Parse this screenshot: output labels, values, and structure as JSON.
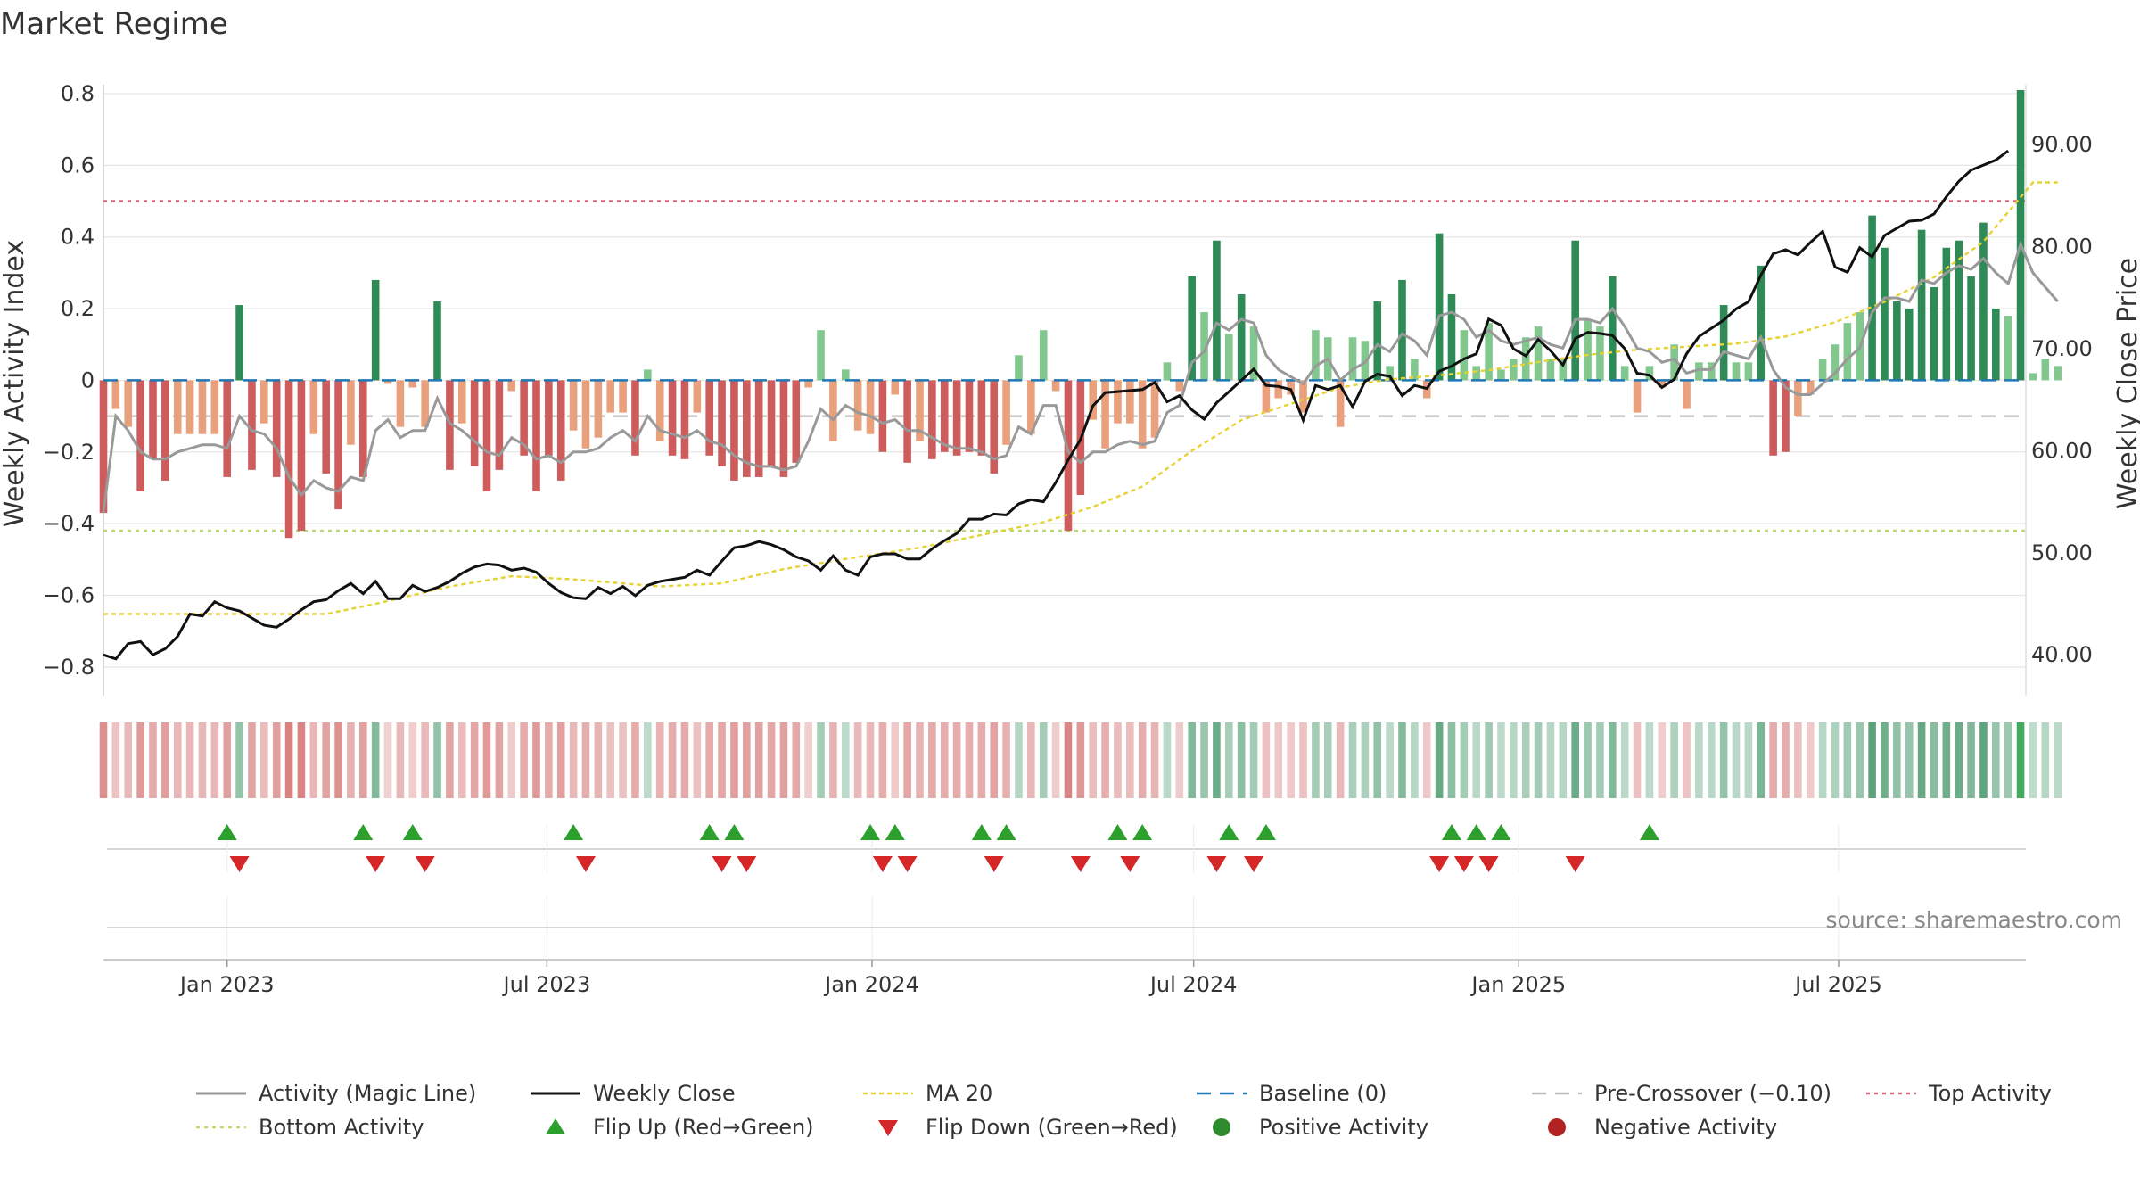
{
  "chart_data": {
    "type": "bar",
    "title": "Market Regime",
    "ylabel": "Weekly Activity Index",
    "y2label": "Weekly Close Price",
    "ylim": [
      -0.88,
      0.8
    ],
    "y2lim": [
      36.0,
      95.0
    ],
    "y_ticks": [
      0.8,
      0.6,
      0.4,
      0.2,
      0,
      -0.2,
      -0.4,
      -0.6,
      -0.8
    ],
    "y_tick_labels": [
      "0.8",
      "0.6",
      "0.4",
      "0.2",
      "0",
      "−0.2",
      "−0.4",
      "−0.6",
      "−0.8"
    ],
    "y2_ticks": [
      90,
      80,
      70,
      60,
      50,
      40
    ],
    "y2_tick_labels": [
      "90.00",
      "80.00",
      "70.00",
      "60.00",
      "50.00",
      "40.00"
    ],
    "x_ticks": [
      {
        "date": "2023-01-01",
        "label": "Jan 2023"
      },
      {
        "date": "2023-07-01",
        "label": "Jul 2023"
      },
      {
        "date": "2024-01-01",
        "label": "Jan 2024"
      },
      {
        "date": "2024-07-01",
        "label": "Jul 2024"
      },
      {
        "date": "2025-01-01",
        "label": "Jan 2025"
      },
      {
        "date": "2025-07-01",
        "label": "Jul 2025"
      }
    ],
    "x_range": [
      "2022-10-23",
      "2025-10-15"
    ],
    "first_week": "2022-10-23",
    "weeks": 157,
    "thresholds": {
      "top": 0.5,
      "bottom": -0.42,
      "pre_crossover": -0.1,
      "baseline": 0
    },
    "colors": {
      "strong_pos": "#2e8b57",
      "weak_pos": "#82c88e",
      "strong_neg": "#cd5c5c",
      "weak_neg": "#e9a07c",
      "magic_line": "#999999",
      "close": "#111111",
      "ma20": "#e6d230",
      "baseline": "#1f77b4",
      "pre_crossover": "#bbbbbb",
      "top": "#d9667a",
      "bottom": "#b8d86b",
      "flip_up": "#2ca02c",
      "flip_down": "#d62728",
      "positive": "#2e8b2e",
      "negative": "#b22222"
    },
    "activity": [
      -0.37,
      -0.08,
      -0.13,
      -0.31,
      -0.22,
      -0.28,
      -0.15,
      -0.15,
      -0.15,
      -0.15,
      -0.27,
      0.21,
      -0.25,
      -0.12,
      -0.27,
      -0.44,
      -0.42,
      -0.15,
      -0.26,
      -0.36,
      -0.18,
      -0.27,
      0.28,
      -0.01,
      -0.13,
      -0.02,
      -0.13,
      0.22,
      -0.25,
      -0.12,
      -0.24,
      -0.31,
      -0.25,
      -0.03,
      -0.21,
      -0.31,
      -0.21,
      -0.28,
      -0.14,
      -0.19,
      -0.16,
      -0.09,
      -0.09,
      -0.21,
      0.03,
      -0.17,
      -0.21,
      -0.22,
      -0.09,
      -0.21,
      -0.24,
      -0.28,
      -0.27,
      -0.27,
      -0.24,
      -0.27,
      -0.23,
      -0.02,
      0.14,
      -0.17,
      0.03,
      -0.14,
      -0.15,
      -0.2,
      -0.04,
      -0.23,
      -0.17,
      -0.22,
      -0.2,
      -0.21,
      -0.2,
      -0.21,
      -0.26,
      -0.18,
      0.07,
      -0.15,
      0.14,
      -0.03,
      -0.42,
      -0.32,
      -0.11,
      -0.19,
      -0.12,
      -0.12,
      -0.19,
      -0.16,
      0.05,
      -0.03,
      0.29,
      0.19,
      0.39,
      0.13,
      0.24,
      0.15,
      -0.09,
      -0.05,
      -0.04,
      -0.09,
      0.14,
      0.12,
      -0.13,
      0.12,
      0.11,
      0.22,
      0.04,
      0.28,
      0.06,
      -0.05,
      0.41,
      0.24,
      0.14,
      0.04,
      0.16,
      0.03,
      0.06,
      0.12,
      0.15,
      0.06,
      0.06,
      0.39,
      0.17,
      0.15,
      0.29,
      0.04,
      -0.09,
      0.04,
      -0.02,
      0.1,
      -0.08,
      0.05,
      0.05,
      0.21,
      0.05,
      0.05,
      0.32,
      -0.21,
      -0.2,
      -0.1,
      -0.04,
      0.06,
      0.1,
      0.16,
      0.19,
      0.46,
      0.37,
      0.22,
      0.2,
      0.42,
      0.26,
      0.37,
      0.39,
      0.29,
      0.44,
      0.2,
      0.18,
      0.81,
      0.02,
      0.06,
      0.04
    ],
    "magic_line": [
      -0.37,
      -0.1,
      -0.14,
      -0.2,
      -0.22,
      -0.22,
      -0.2,
      -0.19,
      -0.18,
      -0.18,
      -0.19,
      -0.1,
      -0.14,
      -0.15,
      -0.19,
      -0.27,
      -0.32,
      -0.28,
      -0.3,
      -0.31,
      -0.27,
      -0.28,
      -0.14,
      -0.11,
      -0.16,
      -0.14,
      -0.14,
      -0.05,
      -0.12,
      -0.14,
      -0.17,
      -0.2,
      -0.21,
      -0.16,
      -0.18,
      -0.22,
      -0.21,
      -0.23,
      -0.2,
      -0.2,
      -0.19,
      -0.16,
      -0.14,
      -0.17,
      -0.1,
      -0.14,
      -0.15,
      -0.16,
      -0.14,
      -0.17,
      -0.18,
      -0.21,
      -0.23,
      -0.24,
      -0.24,
      -0.25,
      -0.24,
      -0.17,
      -0.08,
      -0.11,
      -0.07,
      -0.09,
      -0.1,
      -0.12,
      -0.11,
      -0.14,
      -0.14,
      -0.16,
      -0.18,
      -0.19,
      -0.19,
      -0.2,
      -0.22,
      -0.21,
      -0.13,
      -0.15,
      -0.07,
      -0.07,
      -0.2,
      -0.23,
      -0.2,
      -0.2,
      -0.18,
      -0.17,
      -0.18,
      -0.17,
      -0.09,
      -0.07,
      0.05,
      0.08,
      0.16,
      0.14,
      0.17,
      0.16,
      0.07,
      0.03,
      0.01,
      -0.01,
      0.04,
      0.06,
      0.0,
      0.03,
      0.05,
      0.1,
      0.08,
      0.13,
      0.11,
      0.07,
      0.18,
      0.19,
      0.17,
      0.12,
      0.14,
      0.11,
      0.1,
      0.11,
      0.12,
      0.1,
      0.09,
      0.17,
      0.17,
      0.16,
      0.2,
      0.15,
      0.09,
      0.08,
      0.05,
      0.06,
      0.02,
      0.03,
      0.03,
      0.08,
      0.07,
      0.06,
      0.12,
      0.03,
      -0.02,
      -0.04,
      -0.04,
      -0.01,
      0.02,
      0.06,
      0.09,
      0.19,
      0.23,
      0.23,
      0.22,
      0.28,
      0.27,
      0.3,
      0.32,
      0.31,
      0.34,
      0.3,
      0.27,
      0.38,
      0.3,
      0.26,
      0.22
    ],
    "close": [
      40.0,
      39.6,
      41.1,
      41.3,
      40.0,
      40.6,
      41.8,
      44.0,
      43.8,
      45.2,
      44.6,
      44.3,
      43.6,
      42.9,
      42.7,
      43.5,
      44.4,
      45.2,
      45.4,
      46.3,
      47.0,
      46.0,
      47.2,
      45.5,
      45.5,
      46.8,
      46.2,
      46.6,
      47.2,
      48.0,
      48.6,
      48.9,
      48.8,
      48.3,
      48.5,
      48.1,
      47.0,
      46.1,
      45.6,
      45.5,
      46.6,
      46.0,
      46.7,
      45.8,
      46.8,
      47.2,
      47.4,
      47.6,
      48.3,
      47.8,
      49.2,
      50.5,
      50.7,
      51.1,
      50.8,
      50.3,
      49.6,
      49.2,
      48.3,
      49.7,
      48.3,
      47.8,
      49.6,
      49.9,
      49.9,
      49.4,
      49.4,
      50.4,
      51.2,
      51.9,
      53.3,
      53.3,
      53.8,
      53.7,
      54.8,
      55.2,
      55.0,
      56.9,
      59.1,
      61.1,
      64.4,
      65.7,
      65.8,
      65.9,
      66.0,
      66.7,
      64.8,
      65.4,
      64.0,
      63.1,
      64.7,
      65.8,
      66.9,
      68.0,
      66.4,
      66.3,
      66.0,
      63.0,
      66.4,
      66.0,
      66.4,
      64.3,
      66.8,
      67.5,
      67.3,
      65.4,
      66.4,
      66.1,
      67.8,
      68.3,
      69.0,
      69.5,
      72.9,
      72.3,
      70.0,
      69.3,
      70.9,
      69.8,
      68.4,
      71.0,
      71.6,
      71.5,
      71.3,
      70.0,
      67.6,
      67.4,
      66.2,
      67.0,
      69.5,
      71.2,
      72.0,
      72.8,
      73.9,
      74.6,
      77.2,
      79.3,
      79.7,
      79.2,
      80.4,
      81.5,
      78.0,
      77.5,
      79.9,
      79.0,
      81.1,
      81.8,
      82.5,
      82.6,
      83.2,
      84.9,
      86.4,
      87.5,
      88.0,
      88.5,
      89.4
    ],
    "ma20": [
      44.0,
      44.0,
      44.0,
      44.0,
      44.0,
      44.0,
      44.0,
      44.0,
      44.0,
      44.0,
      44.0,
      44.0,
      44.0,
      44.0,
      44.0,
      44.0,
      44.0,
      44.0,
      44.0,
      44.0,
      44.0,
      44.0,
      44.0,
      44.0,
      44.0,
      44.0,
      44.0,
      44.0,
      44.0,
      44.0,
      44.0,
      44.0,
      44.0,
      44.0,
      44.0,
      44.0,
      44.0,
      44.0,
      44.0,
      44.0,
      44.0,
      44.0,
      44.0,
      44.0,
      44.0,
      44.0,
      44.0,
      44.0,
      44.0,
      44.0,
      44.0,
      44.0,
      44.0,
      44.0,
      44.0,
      44.0,
      44.0,
      44.0,
      44.0,
      44.0,
      44.0,
      44.0,
      44.0,
      44.0,
      44.0,
      44.0,
      44.0,
      44.0,
      44.0,
      44.0,
      44.0,
      44.0,
      44.0,
      44.0,
      44.0,
      44.0,
      44.0,
      44.0,
      44.0,
      44.0,
      44.0,
      44.0,
      44.0,
      44.0,
      44.0,
      44.0,
      44.0,
      44.0,
      44.0,
      44.0,
      44.0,
      44.0,
      44.0,
      44.0,
      44.0,
      44.0,
      44.0,
      44.0,
      44.0,
      44.0,
      44.0,
      44.0,
      44.0,
      44.0,
      44.0,
      44.0,
      44.0,
      44.0,
      44.0,
      44.0,
      44.0,
      44.0,
      44.0,
      44.0,
      44.0,
      44.0,
      44.0,
      44.0,
      44.0,
      44.0,
      44.0,
      44.0,
      44.0,
      44.0,
      44.0,
      44.0,
      44.0,
      44.0,
      44.0,
      44.0,
      44.0,
      44.0,
      44.0,
      44.0,
      44.0,
      44.0,
      44.0,
      44.0,
      44.0,
      44.0,
      44.0,
      44.0,
      44.0,
      44.0,
      44.0,
      44.0,
      44.0,
      44.0,
      44.0,
      44.0,
      44.0,
      44.0,
      44.0,
      44.0,
      44.0,
      44.0,
      44.0
    ],
    "ma20_anchors": [
      [
        0,
        44.0
      ],
      [
        18,
        44.0
      ],
      [
        22,
        45.0
      ],
      [
        28,
        46.7
      ],
      [
        33,
        47.7
      ],
      [
        38,
        47.4
      ],
      [
        45,
        46.7
      ],
      [
        50,
        47.0
      ],
      [
        55,
        48.4
      ],
      [
        60,
        49.4
      ],
      [
        66,
        50.5
      ],
      [
        72,
        52.0
      ],
      [
        76,
        53.0
      ],
      [
        80,
        54.5
      ],
      [
        84,
        56.5
      ],
      [
        88,
        60.0
      ],
      [
        92,
        63.0
      ],
      [
        96,
        64.6
      ],
      [
        100,
        66.2
      ],
      [
        104,
        67.0
      ],
      [
        108,
        67.4
      ],
      [
        112,
        67.9
      ],
      [
        116,
        68.7
      ],
      [
        120,
        69.4
      ],
      [
        124,
        69.9
      ],
      [
        128,
        70.2
      ],
      [
        132,
        70.5
      ],
      [
        136,
        71.2
      ],
      [
        140,
        72.6
      ],
      [
        144,
        74.6
      ],
      [
        148,
        77.0
      ],
      [
        152,
        80.5
      ],
      [
        156,
        86.3
      ]
    ],
    "flip_up_weeks": [
      10,
      21,
      25,
      38,
      49,
      51,
      62,
      64,
      71,
      73,
      82,
      84,
      91,
      94,
      109,
      111,
      113,
      125
    ],
    "flip_down_weeks": [
      11,
      22,
      26,
      39,
      50,
      52,
      63,
      65,
      72,
      79,
      83,
      90,
      93,
      108,
      110,
      112,
      119
    ],
    "source_text": "source: sharemaestro.com",
    "legend": [
      {
        "key": "magic",
        "label": "Activity (Magic Line)"
      },
      {
        "key": "close",
        "label": "Weekly Close"
      },
      {
        "key": "ma20",
        "label": "MA 20"
      },
      {
        "key": "baseline",
        "label": "Baseline (0)"
      },
      {
        "key": "precross",
        "label": "Pre-Crossover (−0.10)"
      },
      {
        "key": "top",
        "label": "Top Activity"
      },
      {
        "key": "bottom",
        "label": "Bottom Activity"
      },
      {
        "key": "flipup",
        "label": "Flip Up (Red→Green)"
      },
      {
        "key": "flipdown",
        "label": "Flip Down (Green→Red)"
      },
      {
        "key": "positive",
        "label": "Positive Activity"
      },
      {
        "key": "negative",
        "label": "Negative Activity"
      }
    ]
  }
}
